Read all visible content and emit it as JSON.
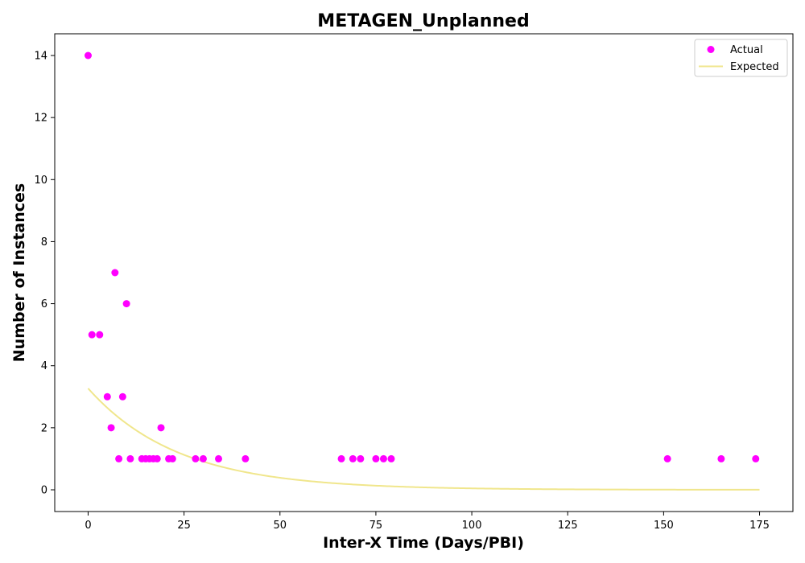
{
  "chart_data": {
    "type": "scatter",
    "title": "METAGEN_Unplanned",
    "xlabel": "Inter-X Time (Days/PBI)",
    "ylabel": "Number of Instances",
    "xlim": [
      -8.7,
      183.7
    ],
    "ylim": [
      -0.7,
      14.7
    ],
    "xticks": [
      0,
      25,
      50,
      75,
      100,
      125,
      150,
      175
    ],
    "yticks": [
      0,
      2,
      4,
      6,
      8,
      10,
      12,
      14
    ],
    "legend_position": "top-right",
    "colors": {
      "actual": "#ff00ff",
      "expected": "#f0e68c"
    },
    "series": [
      {
        "name": "Actual",
        "kind": "scatter",
        "points": [
          [
            0,
            14
          ],
          [
            1,
            5
          ],
          [
            3,
            5
          ],
          [
            5,
            3
          ],
          [
            6,
            2
          ],
          [
            7,
            7
          ],
          [
            8,
            1
          ],
          [
            9,
            3
          ],
          [
            10,
            6
          ],
          [
            11,
            1
          ],
          [
            14,
            1
          ],
          [
            15,
            1
          ],
          [
            16,
            1
          ],
          [
            17,
            1
          ],
          [
            18,
            1
          ],
          [
            19,
            2
          ],
          [
            21,
            1
          ],
          [
            22,
            1
          ],
          [
            28,
            1
          ],
          [
            30,
            1
          ],
          [
            34,
            1
          ],
          [
            41,
            1
          ],
          [
            66,
            1
          ],
          [
            69,
            1
          ],
          [
            71,
            1
          ],
          [
            75,
            1
          ],
          [
            77,
            1
          ],
          [
            79,
            1
          ],
          [
            151,
            1
          ],
          [
            165,
            1
          ],
          [
            174,
            1
          ]
        ]
      },
      {
        "name": "Expected",
        "kind": "line",
        "model": "exponential",
        "amplitude": 3.27,
        "decay": 0.0426,
        "x_range": [
          0,
          175
        ]
      }
    ]
  }
}
